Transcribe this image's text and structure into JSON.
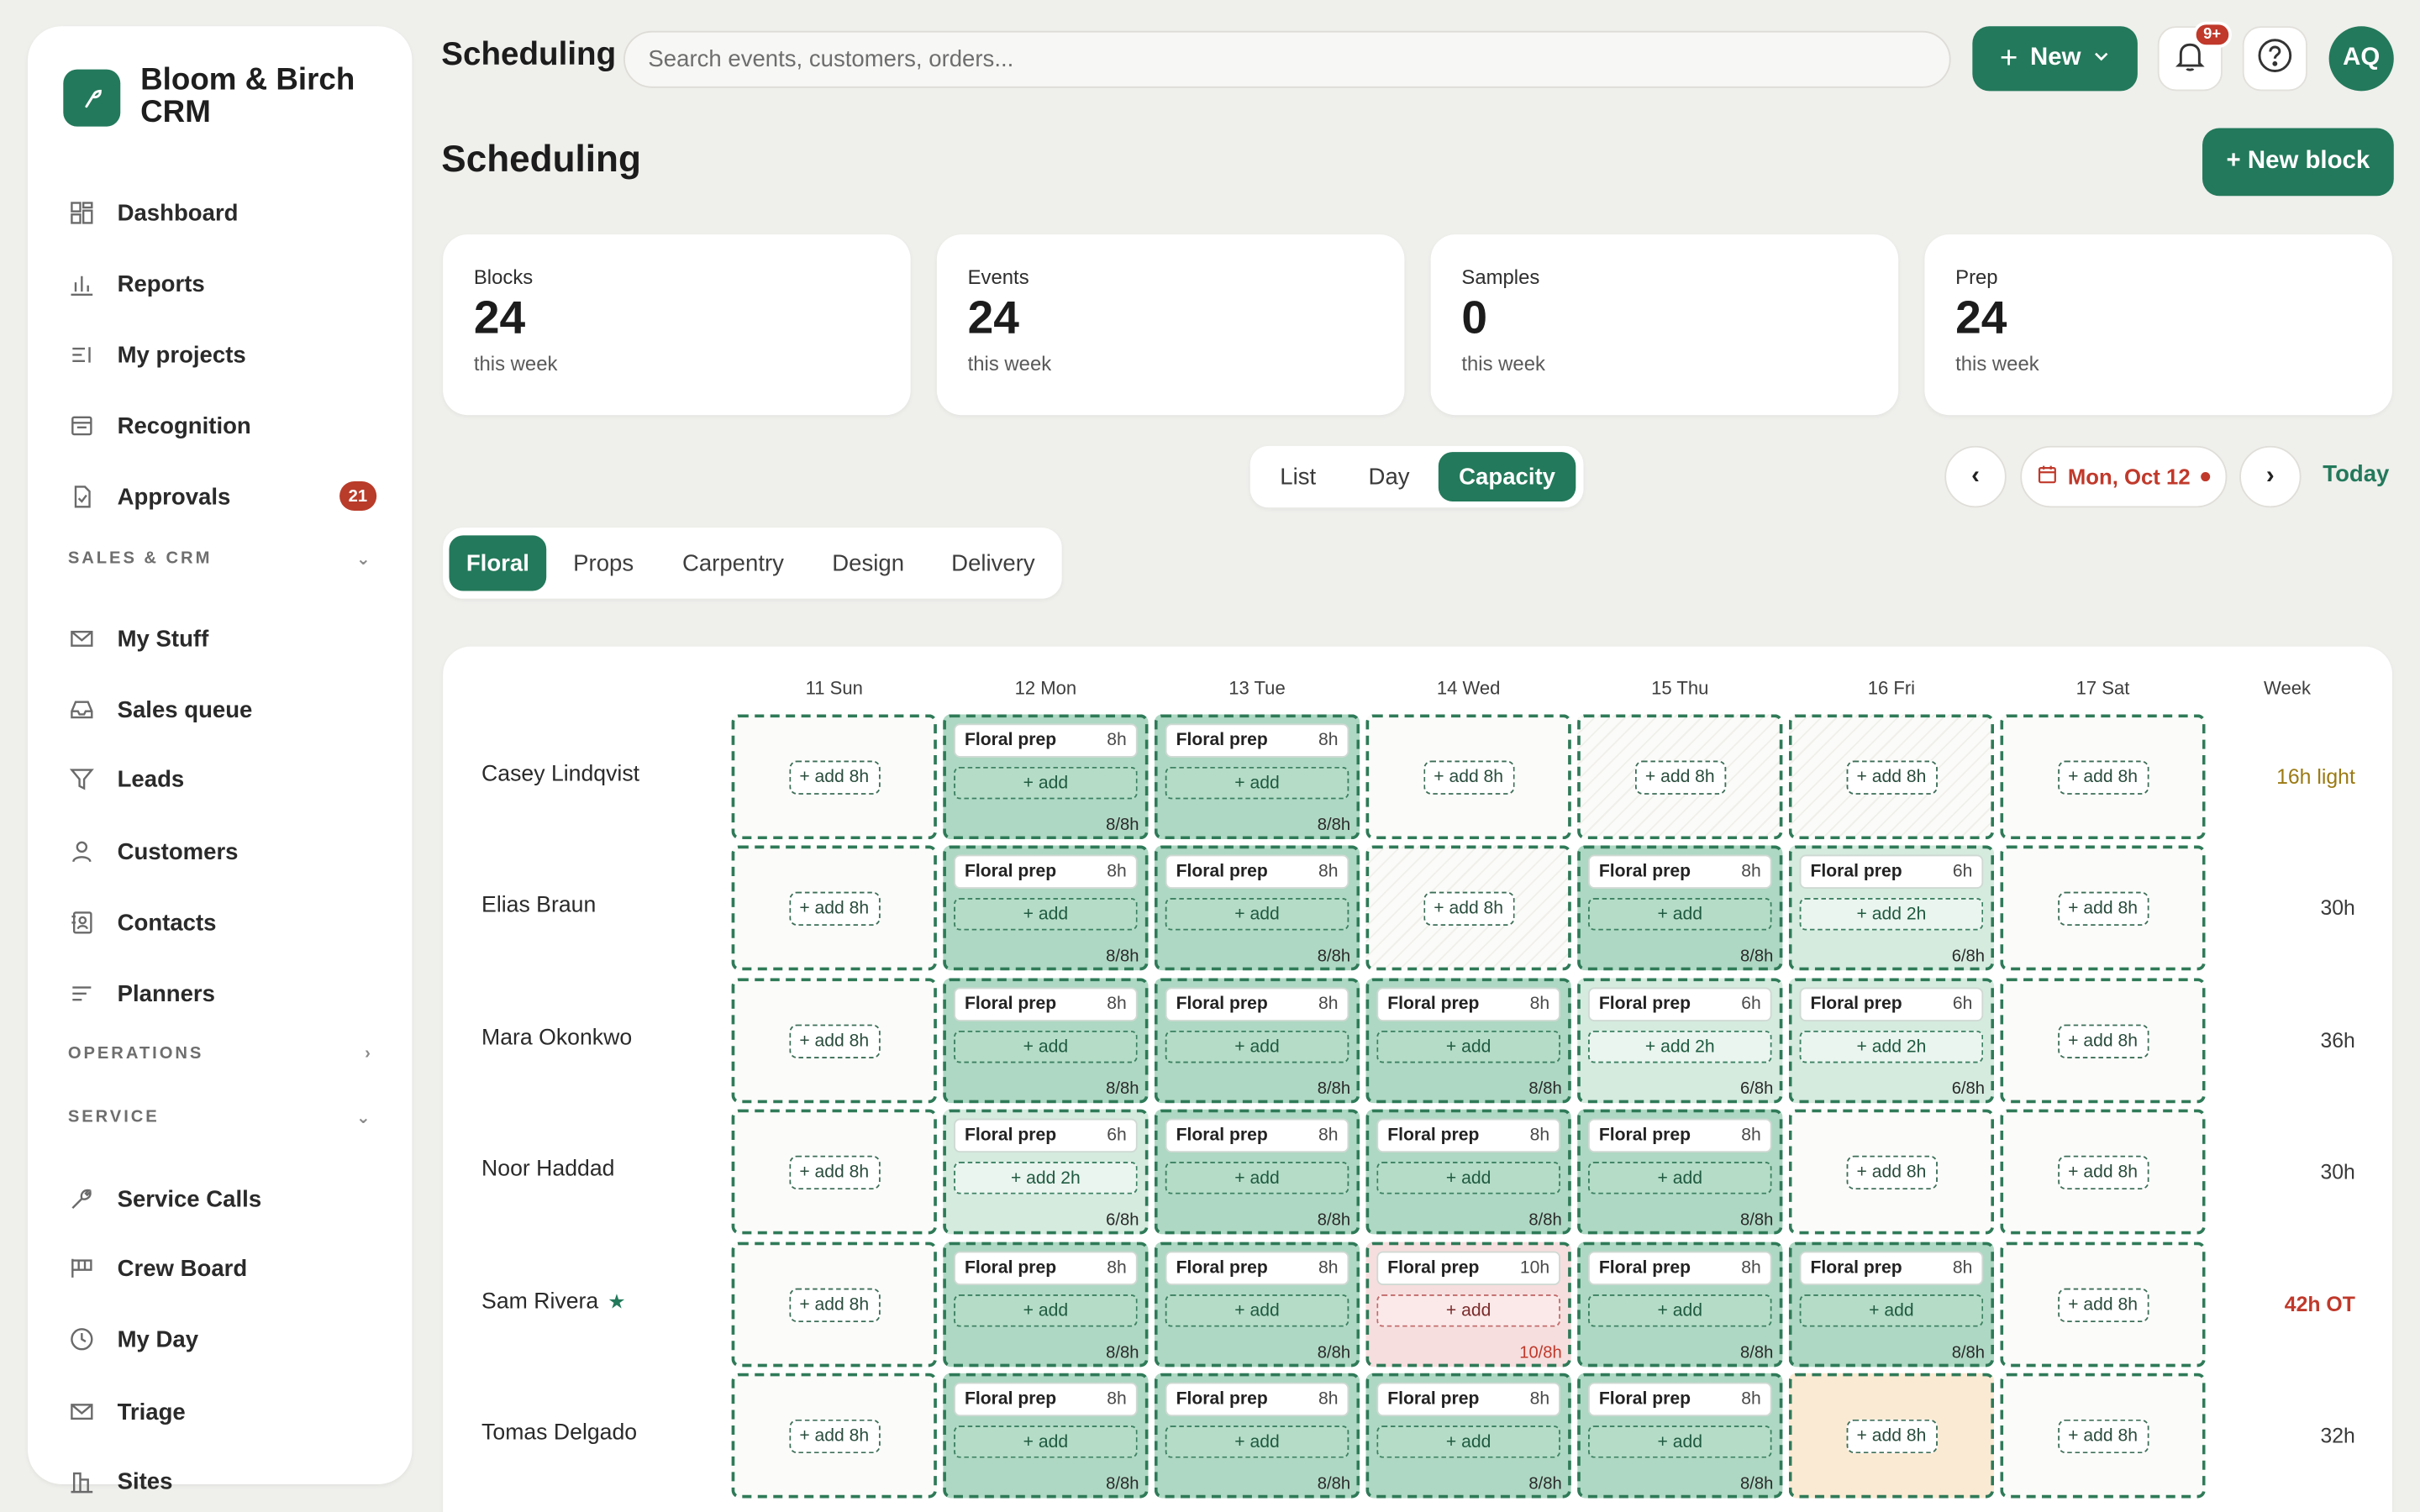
{
  "app": {
    "name": "Bloom & Birch CRM"
  },
  "sidebar": {
    "items_top": [
      {
        "label": "Dashboard",
        "icon": "grid-icon"
      },
      {
        "label": "Reports",
        "icon": "bar-chart-icon"
      },
      {
        "label": "My projects",
        "icon": "list-icon"
      },
      {
        "label": "Recognition",
        "icon": "document-icon"
      },
      {
        "label": "Approvals",
        "icon": "approval-icon",
        "badge": "21"
      }
    ],
    "sections": [
      {
        "label": "SALES & CRM",
        "state": "expanded"
      },
      {
        "label": "OPERATIONS",
        "state": "collapsed"
      },
      {
        "label": "SERVICE",
        "state": "expanded"
      }
    ],
    "items_sales": [
      {
        "label": "My Stuff",
        "icon": "mail-icon"
      },
      {
        "label": "Sales queue",
        "icon": "inbox-icon"
      },
      {
        "label": "Leads",
        "icon": "filter-icon"
      },
      {
        "label": "Customers",
        "icon": "person-icon"
      },
      {
        "label": "Contacts",
        "icon": "contacts-icon"
      },
      {
        "label": "Planners",
        "icon": "lines-icon"
      }
    ],
    "items_service": [
      {
        "label": "Service Calls",
        "icon": "wrench-icon"
      },
      {
        "label": "Crew Board",
        "icon": "board-icon"
      },
      {
        "label": "My Day",
        "icon": "clock-icon"
      },
      {
        "label": "Triage",
        "icon": "mail-icon"
      },
      {
        "label": "Sites",
        "icon": "building-icon"
      }
    ]
  },
  "topbar": {
    "title": "Scheduling",
    "search_placeholder": "Search events, customers, orders...",
    "new_label": "New",
    "notif_badge": "9+",
    "avatar": "AQ"
  },
  "page": {
    "title": "Scheduling",
    "new_block_label": "+ New block"
  },
  "stats": [
    {
      "label": "Blocks",
      "value": "24",
      "sub": "this week"
    },
    {
      "label": "Events",
      "value": "24",
      "sub": "this week"
    },
    {
      "label": "Samples",
      "value": "0",
      "sub": "this week"
    },
    {
      "label": "Prep",
      "value": "24",
      "sub": "this week"
    }
  ],
  "view_toggle": {
    "options": [
      "List",
      "Day",
      "Capacity"
    ],
    "active": "Capacity"
  },
  "date_nav": {
    "prev": "‹",
    "next": "›",
    "date": "Mon, Oct 12",
    "today": "Today"
  },
  "departments": {
    "tabs": [
      "Floral",
      "Props",
      "Carpentry",
      "Design",
      "Delivery"
    ],
    "active": "Floral"
  },
  "capacity": {
    "days": [
      "11 Sun",
      "12 Mon",
      "13 Tue",
      "14 Wed",
      "15 Thu",
      "16 Fri",
      "17 Sat"
    ],
    "week_label": "Week",
    "rows": [
      {
        "name": "Casey Lindqvist",
        "week_total": "16h light",
        "week_status": "light",
        "cells": [
          {
            "type": "empty",
            "add": "+ add 8h"
          },
          {
            "type": "full",
            "block": "Floral prep",
            "hours": "8h",
            "add": "+ add",
            "cap": "8/8h"
          },
          {
            "type": "full",
            "block": "Floral prep",
            "hours": "8h",
            "add": "+ add",
            "cap": "8/8h"
          },
          {
            "type": "empty",
            "add": "+ add 8h"
          },
          {
            "type": "empty",
            "hatched": true,
            "add": "+ add 8h"
          },
          {
            "type": "empty",
            "hatched": true,
            "add": "+ add 8h"
          },
          {
            "type": "empty",
            "add": "+ add 8h"
          }
        ]
      },
      {
        "name": "Elias Braun",
        "week_total": "30h",
        "week_status": "normal",
        "cells": [
          {
            "type": "empty",
            "add": "+ add 8h"
          },
          {
            "type": "full",
            "block": "Floral prep",
            "hours": "8h",
            "add": "+ add",
            "cap": "8/8h"
          },
          {
            "type": "full",
            "block": "Floral prep",
            "hours": "8h",
            "add": "+ add",
            "cap": "8/8h"
          },
          {
            "type": "empty",
            "hatched": true,
            "add": "+ add 8h"
          },
          {
            "type": "full",
            "block": "Floral prep",
            "hours": "8h",
            "add": "+ add",
            "cap": "8/8h"
          },
          {
            "type": "part",
            "block": "Floral prep",
            "hours": "6h",
            "add": "+ add 2h",
            "cap": "6/8h"
          },
          {
            "type": "empty",
            "add": "+ add 8h"
          }
        ]
      },
      {
        "name": "Mara Okonkwo",
        "week_total": "36h",
        "week_status": "normal",
        "cells": [
          {
            "type": "empty",
            "add": "+ add 8h"
          },
          {
            "type": "full",
            "block": "Floral prep",
            "hours": "8h",
            "add": "+ add",
            "cap": "8/8h"
          },
          {
            "type": "full",
            "block": "Floral prep",
            "hours": "8h",
            "add": "+ add",
            "cap": "8/8h"
          },
          {
            "type": "full",
            "block": "Floral prep",
            "hours": "8h",
            "add": "+ add",
            "cap": "8/8h"
          },
          {
            "type": "part",
            "block": "Floral prep",
            "hours": "6h",
            "add": "+ add 2h",
            "cap": "6/8h"
          },
          {
            "type": "part",
            "block": "Floral prep",
            "hours": "6h",
            "add": "+ add 2h",
            "cap": "6/8h"
          },
          {
            "type": "empty",
            "add": "+ add 8h"
          }
        ]
      },
      {
        "name": "Noor Haddad",
        "week_total": "30h",
        "week_status": "normal",
        "cells": [
          {
            "type": "empty",
            "add": "+ add 8h"
          },
          {
            "type": "part",
            "block": "Floral prep",
            "hours": "6h",
            "add": "+ add 2h",
            "cap": "6/8h"
          },
          {
            "type": "full",
            "block": "Floral prep",
            "hours": "8h",
            "add": "+ add",
            "cap": "8/8h"
          },
          {
            "type": "full",
            "block": "Floral prep",
            "hours": "8h",
            "add": "+ add",
            "cap": "8/8h"
          },
          {
            "type": "full",
            "block": "Floral prep",
            "hours": "8h",
            "add": "+ add",
            "cap": "8/8h"
          },
          {
            "type": "empty",
            "add": "+ add 8h"
          },
          {
            "type": "empty",
            "add": "+ add 8h"
          }
        ]
      },
      {
        "name": "Sam Rivera",
        "starred": true,
        "week_total": "42h OT",
        "week_status": "ot",
        "cells": [
          {
            "type": "empty",
            "add": "+ add 8h"
          },
          {
            "type": "full",
            "block": "Floral prep",
            "hours": "8h",
            "add": "+ add",
            "cap": "8/8h"
          },
          {
            "type": "full",
            "block": "Floral prep",
            "hours": "8h",
            "add": "+ add",
            "cap": "8/8h"
          },
          {
            "type": "over",
            "block": "Floral prep",
            "hours": "10h",
            "add": "+ add",
            "cap": "10/8h"
          },
          {
            "type": "full",
            "block": "Floral prep",
            "hours": "8h",
            "add": "+ add",
            "cap": "8/8h"
          },
          {
            "type": "full",
            "block": "Floral prep",
            "hours": "8h",
            "add": "+ add",
            "cap": "8/8h"
          },
          {
            "type": "empty",
            "add": "+ add 8h"
          }
        ]
      },
      {
        "name": "Tomas Delgado",
        "week_total": "32h",
        "week_status": "normal",
        "cells": [
          {
            "type": "empty",
            "add": "+ add 8h"
          },
          {
            "type": "full",
            "block": "Floral prep",
            "hours": "8h",
            "add": "+ add",
            "cap": "8/8h"
          },
          {
            "type": "full",
            "block": "Floral prep",
            "hours": "8h",
            "add": "+ add",
            "cap": "8/8h"
          },
          {
            "type": "full",
            "block": "Floral prep",
            "hours": "8h",
            "add": "+ add",
            "cap": "8/8h"
          },
          {
            "type": "full",
            "block": "Floral prep",
            "hours": "8h",
            "add": "+ add",
            "cap": "8/8h"
          },
          {
            "type": "empty",
            "warm": true,
            "add": "+ add 8h"
          },
          {
            "type": "empty",
            "add": "+ add 8h"
          }
        ]
      }
    ]
  },
  "colors": {
    "accent": "#23795b",
    "danger": "#c0392b",
    "warning": "#9b7a14"
  }
}
